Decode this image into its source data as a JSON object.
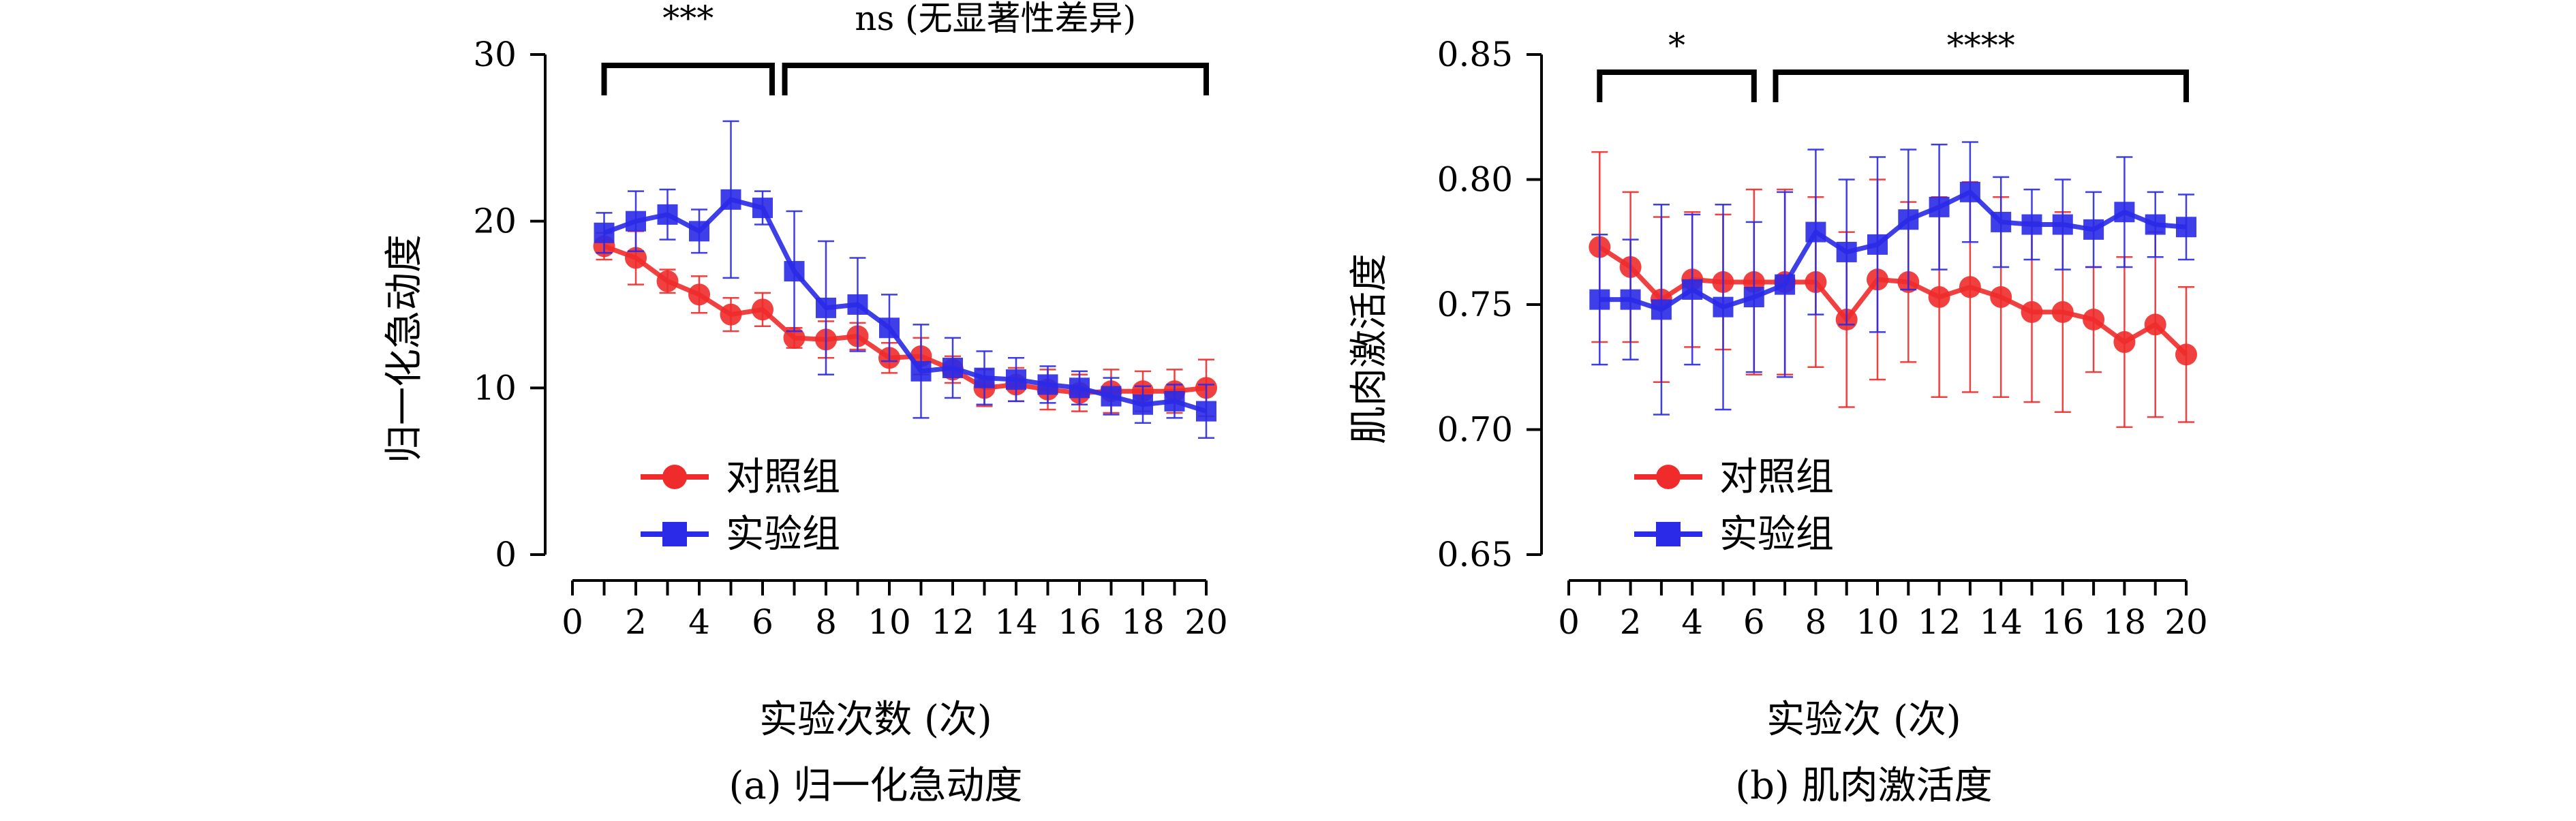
{
  "colors": {
    "control": "#ef2b2b",
    "experiment": "#2a2ae8",
    "axis": "#000000"
  },
  "chart_data": [
    {
      "type": "line",
      "caption": "(a) 归一化急动度",
      "xlabel": "实验次数 (次)",
      "ylabel": "归一化急动度",
      "xlim": [
        0,
        20
      ],
      "ylim": [
        0,
        30
      ],
      "x_ticks": [
        "0",
        "2",
        "4",
        "6",
        "8",
        "10",
        "12",
        "14",
        "16",
        "18",
        "20"
      ],
      "y_ticks": [
        "0",
        "10",
        "20",
        "30"
      ],
      "x": [
        1,
        2,
        3,
        4,
        5,
        6,
        7,
        8,
        9,
        10,
        11,
        12,
        13,
        14,
        15,
        16,
        17,
        18,
        19,
        20
      ],
      "series": [
        {
          "name": "对照组",
          "marker": "circle",
          "values": [
            18.5,
            17.8,
            16.4,
            15.6,
            14.4,
            14.7,
            13.0,
            12.9,
            13.1,
            11.8,
            11.9,
            11.1,
            10.0,
            10.2,
            9.9,
            9.7,
            9.8,
            9.8,
            9.8,
            10.0
          ],
          "errors": [
            0.8,
            1.6,
            0.7,
            1.1,
            1.0,
            1.0,
            0.6,
            1.1,
            0.8,
            0.9,
            1.1,
            0.8,
            1.1,
            1.0,
            1.2,
            1.1,
            1.3,
            1.2,
            1.3,
            1.7
          ]
        },
        {
          "name": "实验组",
          "marker": "square",
          "values": [
            19.3,
            20.0,
            20.4,
            19.4,
            21.3,
            20.8,
            17.0,
            14.8,
            15.0,
            13.6,
            11.0,
            11.2,
            10.6,
            10.5,
            10.2,
            10.0,
            9.5,
            9.0,
            9.2,
            8.6
          ],
          "errors": [
            1.2,
            1.8,
            1.5,
            1.3,
            4.7,
            1.0,
            3.6,
            4.0,
            2.8,
            2.0,
            2.8,
            1.8,
            1.6,
            1.3,
            1.1,
            1.0,
            1.1,
            1.1,
            1.0,
            1.6
          ]
        }
      ],
      "significance": [
        {
          "label": "***",
          "x_range": [
            1,
            6.3
          ]
        },
        {
          "label": "ns (无显著性差异)",
          "x_range": [
            6.7,
            20
          ]
        }
      ],
      "legend": "bottom-left"
    },
    {
      "type": "line",
      "caption": "(b) 肌肉激活度",
      "xlabel": "实验次 (次)",
      "ylabel": "肌肉激活度",
      "xlim": [
        0,
        20
      ],
      "ylim": [
        0.65,
        0.85
      ],
      "x_ticks": [
        "0",
        "2",
        "4",
        "6",
        "8",
        "10",
        "12",
        "14",
        "16",
        "18",
        "20"
      ],
      "y_ticks": [
        "0.65",
        "0.70",
        "0.75",
        "0.80",
        "0.85"
      ],
      "x": [
        1,
        2,
        3,
        4,
        5,
        6,
        7,
        8,
        9,
        10,
        11,
        12,
        13,
        14,
        15,
        16,
        17,
        18,
        19,
        20
      ],
      "series": [
        {
          "name": "对照组",
          "marker": "circle",
          "values": [
            0.773,
            0.765,
            0.752,
            0.76,
            0.759,
            0.759,
            0.759,
            0.759,
            0.744,
            0.76,
            0.759,
            0.753,
            0.757,
            0.753,
            0.747,
            0.747,
            0.744,
            0.735,
            0.742,
            0.73
          ],
          "errors": [
            0.038,
            0.03,
            0.033,
            0.027,
            0.027,
            0.037,
            0.037,
            0.034,
            0.035,
            0.04,
            0.032,
            0.04,
            0.042,
            0.04,
            0.036,
            0.04,
            0.021,
            0.034,
            0.037,
            0.027
          ]
        },
        {
          "name": "实验组",
          "marker": "square",
          "values": [
            0.752,
            0.752,
            0.748,
            0.756,
            0.749,
            0.753,
            0.758,
            0.779,
            0.771,
            0.774,
            0.784,
            0.789,
            0.795,
            0.783,
            0.782,
            0.782,
            0.78,
            0.787,
            0.782,
            0.781
          ],
          "errors": [
            0.026,
            0.024,
            0.042,
            0.03,
            0.041,
            0.03,
            0.037,
            0.033,
            0.029,
            0.035,
            0.028,
            0.025,
            0.02,
            0.018,
            0.014,
            0.018,
            0.015,
            0.022,
            0.013,
            0.013
          ]
        }
      ],
      "significance": [
        {
          "label": "*",
          "x_range": [
            1,
            6
          ]
        },
        {
          "label": "****",
          "x_range": [
            6.7,
            20
          ]
        }
      ],
      "legend": "bottom-left"
    }
  ]
}
